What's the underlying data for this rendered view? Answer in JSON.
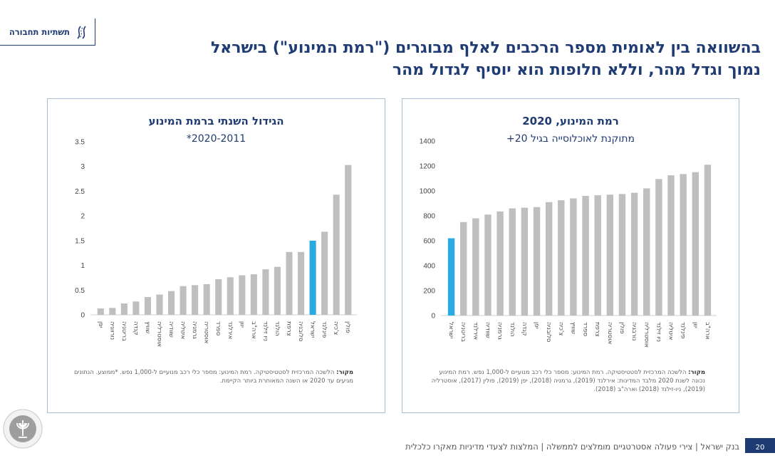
{
  "header": {
    "topic_label": "תשתיות תחבורה",
    "title_line1": "בהשוואה בין לאומית מספר הרכבים לאלף מבוגרים (\"רמת המינוע\") בישראל",
    "title_line2": "נמוך וגדל מהר, וללא חלופות הוא יוסיף לגדול מהר"
  },
  "colors": {
    "highlight": "#29abe2",
    "bar": "#bfbfbf",
    "title": "#1f3b73"
  },
  "left_panel": {
    "source_label": "מקור:",
    "source_text": "הלשכה המרכזית לסטטיסטיקה. רמת המינוע: מספר כלי רכב מנועיים ל-1,000 נפש. *ממוצע. הנתונים מגיעים עד 2020 או השנה המאוחרת ביותר הקיימת."
  },
  "right_panel": {
    "source_label": "מקור:",
    "source_text": "הלשכה המרכזית לסטטיסטיקה. רמת המינוע: מספר כלי רכב מנועיים ל-1,000 נפש. רמת המינוע נכונה לשנת 2020 מלבד המדינות: אירלנד (2019), גרמניה (2018), יפן (2019), פולין (2017), אוסטרליה (2019), ניו-זילנד (2018) וארה\"ב (2018)."
  },
  "footer": {
    "text": "בנק ישראל | צירי פעולה אסטרטגיים מומלצים לממשלה | המלצות לצעדי מדיניות מאקרו כלכלית",
    "page_number": "20"
  },
  "chart_data": [
    {
      "type": "bar",
      "title": "הגידול השנתי ברמת המינוע",
      "subtitle": "2020-2011*",
      "categories": [
        "יפן",
        "נורווגיה",
        "בריטניה",
        "קנדה",
        "שוויץ",
        "אוסטרליה",
        "שוודיה",
        "איטליה",
        "גרמניה",
        "אוסטריה",
        "ספרד",
        "אירלנד",
        "יוון",
        "ארה\"ב",
        "ניו זילנד",
        "הולנד",
        "צרפת",
        "סלובניה",
        "ישראל",
        "פינלנד",
        "צ'כיה",
        "פולין"
      ],
      "values": [
        0.13,
        0.14,
        0.23,
        0.27,
        0.36,
        0.41,
        0.48,
        0.58,
        0.6,
        0.62,
        0.72,
        0.76,
        0.8,
        0.82,
        0.92,
        0.97,
        1.27,
        1.27,
        1.5,
        1.68,
        2.43,
        3.03
      ],
      "highlight_category": "ישראל",
      "ylim": [
        0,
        3.5
      ],
      "yticks": [
        "0",
        "0.5",
        "1",
        "1.5",
        "2",
        "2.5",
        "3",
        "3.5"
      ],
      "ytick_values": [
        0,
        0.5,
        1,
        1.5,
        2,
        2.5,
        3,
        3.5
      ],
      "xlabel": "",
      "ylabel": "",
      "grid": false
    },
    {
      "type": "bar",
      "title": "רמת המינוע, 2020",
      "subtitle": "מתוקנת לאוכלוסייה בגיל 20+",
      "categories": [
        "ישראל",
        "בריטניה",
        "אירלנד",
        "שוודיה",
        "גרמניה",
        "הולנד",
        "קנדה",
        "יפן",
        "סלובניה",
        "צ'כיה",
        "שוויץ",
        "ספרד",
        "צרפת",
        "אוסטריה",
        "פולין",
        "נורבגיה",
        "אוסטרליה",
        "ניו זילנד",
        "איטליה",
        "פינלנד",
        "יוון",
        "ארה\"ב"
      ],
      "values": [
        620,
        750,
        780,
        810,
        835,
        860,
        865,
        870,
        910,
        925,
        940,
        960,
        965,
        970,
        975,
        985,
        1020,
        1095,
        1125,
        1135,
        1150,
        1210
      ],
      "highlight_category": "ישראל",
      "ylim": [
        0,
        1400
      ],
      "yticks": [
        "0",
        "200",
        "400",
        "600",
        "800",
        "1000",
        "1200",
        "1400"
      ],
      "ytick_values": [
        0,
        200,
        400,
        600,
        800,
        1000,
        1200,
        1400
      ],
      "xlabel": "",
      "ylabel": "",
      "grid": false
    }
  ]
}
